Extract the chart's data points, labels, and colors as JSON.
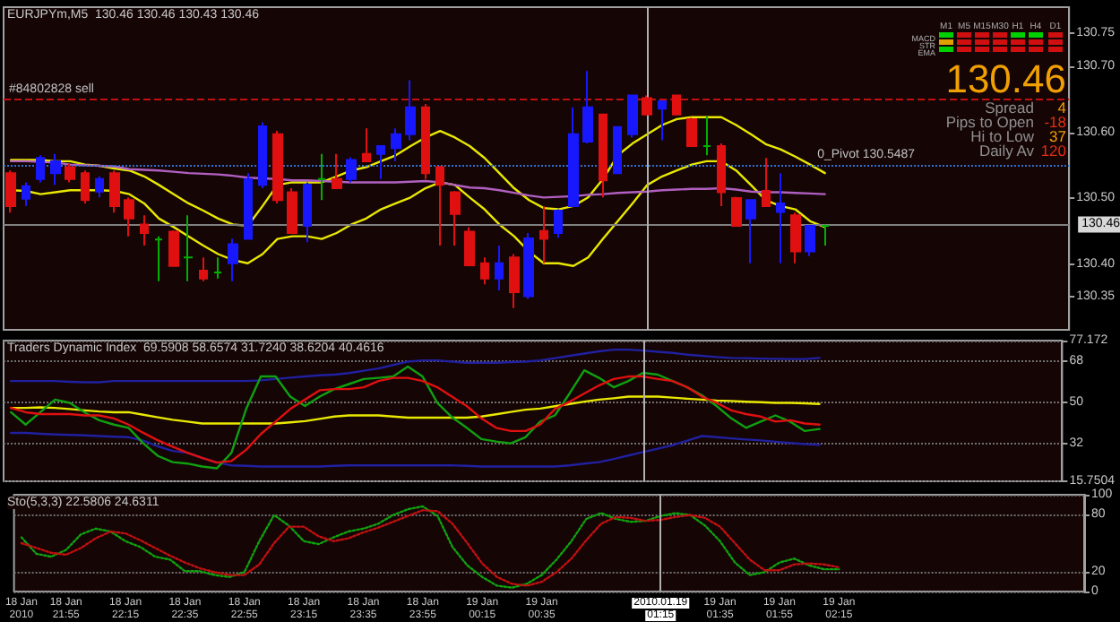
{
  "chart_data": [
    {
      "type": "candlestick",
      "title": "EURJPYm,M5  130.46 130.46 130.43 130.46",
      "categories": [
        null,
        null,
        null,
        null,
        null,
        null,
        null,
        null,
        null,
        null,
        null,
        null,
        null,
        null,
        null,
        null,
        null,
        null,
        null,
        null,
        null,
        null,
        null,
        null,
        null,
        null,
        null,
        null,
        null,
        null,
        null,
        null,
        null,
        null,
        null,
        null,
        null,
        null,
        null,
        null,
        null,
        null,
        null,
        null,
        null,
        null,
        null,
        null,
        null,
        null,
        null,
        null,
        null,
        null,
        null,
        null
      ],
      "ohlc": [
        [
          130.538,
          130.542,
          130.478,
          130.488
        ],
        [
          130.499,
          130.524,
          130.488,
          130.518
        ],
        [
          130.529,
          130.565,
          130.524,
          130.561
        ],
        [
          130.538,
          130.567,
          130.52,
          130.556
        ],
        [
          130.547,
          130.552,
          130.524,
          130.529
        ],
        [
          130.538,
          130.542,
          130.492,
          130.497
        ],
        [
          130.51,
          130.533,
          130.501,
          130.529
        ],
        [
          130.538,
          130.542,
          130.478,
          130.488
        ],
        [
          130.497,
          130.501,
          130.442,
          130.469
        ],
        [
          130.46,
          130.474,
          130.428,
          130.447
        ],
        [
          130.437,
          130.442,
          130.374,
          130.437
        ],
        [
          130.449,
          130.451,
          130.397,
          130.397
        ],
        [
          130.41,
          130.474,
          130.374,
          130.41
        ],
        [
          130.39,
          130.41,
          130.374,
          130.378
        ],
        [
          130.387,
          130.41,
          130.378,
          130.387
        ],
        [
          130.401,
          130.438,
          130.374,
          130.43
        ],
        [
          130.438,
          130.538,
          130.438,
          130.529
        ],
        [
          130.52,
          130.615,
          130.515,
          130.609
        ],
        [
          130.597,
          130.602,
          130.492,
          130.497
        ],
        [
          130.509,
          130.515,
          130.447,
          130.447
        ],
        [
          130.458,
          130.524,
          130.433,
          130.52
        ],
        [
          130.529,
          130.567,
          130.497,
          130.529
        ],
        [
          130.529,
          130.567,
          130.515,
          130.515
        ],
        [
          130.529,
          130.562,
          130.524,
          130.558
        ],
        [
          130.567,
          130.606,
          130.556,
          130.556
        ],
        [
          130.567,
          130.579,
          130.529,
          130.579
        ],
        [
          130.576,
          130.606,
          130.556,
          130.597
        ],
        [
          130.597,
          130.679,
          130.588,
          130.638
        ],
        [
          130.638,
          130.643,
          130.529,
          130.538
        ],
        [
          130.547,
          130.549,
          130.428,
          130.52
        ],
        [
          130.509,
          130.511,
          130.428,
          130.476
        ],
        [
          130.449,
          130.456,
          130.397,
          130.398
        ],
        [
          130.401,
          130.41,
          130.369,
          130.378
        ],
        [
          130.378,
          130.428,
          130.36,
          130.401
        ],
        [
          130.41,
          130.415,
          130.333,
          130.357
        ],
        [
          130.351,
          130.447,
          130.347,
          130.439
        ],
        [
          130.45,
          130.488,
          130.401,
          130.438
        ],
        [
          130.447,
          130.483,
          130.44,
          130.481
        ],
        [
          130.488,
          130.638,
          130.488,
          130.597
        ],
        [
          130.586,
          130.693,
          130.583,
          130.638
        ],
        [
          130.627,
          130.627,
          130.501,
          130.527
        ],
        [
          130.538,
          130.608,
          130.538,
          130.608
        ],
        [
          130.597,
          130.656,
          130.592,
          130.656
        ],
        [
          130.652,
          130.656,
          130.627,
          130.627
        ],
        [
          130.636,
          130.647,
          130.588,
          130.647
        ],
        [
          130.656,
          130.656,
          130.627,
          130.627
        ],
        [
          130.62,
          130.622,
          130.579,
          130.579
        ],
        [
          130.579,
          130.624,
          130.565,
          130.579
        ],
        [
          130.579,
          130.583,
          130.488,
          130.509
        ],
        [
          130.5,
          130.502,
          130.458,
          130.458
        ],
        [
          130.469,
          130.497,
          130.401,
          130.497
        ],
        [
          130.511,
          130.561,
          130.488,
          130.488
        ],
        [
          130.479,
          130.538,
          130.401,
          130.492
        ],
        [
          130.474,
          130.478,
          130.401,
          130.419
        ],
        [
          130.419,
          130.458,
          130.412,
          130.458
        ],
        [
          130.458,
          130.46,
          130.428,
          130.458
        ]
      ],
      "colors": [
        "#e01010",
        "#1818ff",
        "#1818ff",
        "#1818ff",
        "#e01010",
        "#e01010",
        "#1818ff",
        "#e01010",
        "#e01010",
        "#e01010",
        "#00b000",
        "#e01010",
        "#00b000",
        "#e01010",
        "#00b000",
        "#1818ff",
        "#1818ff",
        "#1818ff",
        "#e01010",
        "#e01010",
        "#1818ff",
        "#00b000",
        "#e01010",
        "#1818ff",
        "#e01010",
        "#1818ff",
        "#1818ff",
        "#1818ff",
        "#e01010",
        "#e01010",
        "#e01010",
        "#e01010",
        "#e01010",
        "#1818ff",
        "#e01010",
        "#1818ff",
        "#e01010",
        "#1818ff",
        "#1818ff",
        "#1818ff",
        "#e01010",
        "#1818ff",
        "#1818ff",
        "#e01010",
        "#1818ff",
        "#e01010",
        "#e01010",
        "#00b000",
        "#e01010",
        "#e01010",
        "#1818ff",
        "#e01010",
        "#1818ff",
        "#e01010",
        "#1818ff",
        "#00b000"
      ],
      "series": [
        {
          "type": "line",
          "color": "#e8e800",
          "values": [
            130.558,
            130.558,
            130.558,
            130.556,
            130.556,
            130.551,
            130.549,
            130.545,
            130.542,
            130.533,
            130.52,
            130.506,
            130.492,
            130.481,
            130.469,
            130.46,
            130.458,
            130.488,
            130.52,
            130.524,
            130.524,
            130.524,
            130.533,
            130.542,
            130.547,
            130.556,
            130.565,
            130.579,
            130.592,
            130.602,
            130.592,
            130.579,
            130.561,
            130.538,
            130.515,
            130.497,
            130.485,
            130.483,
            130.488,
            130.501,
            130.529,
            130.565,
            130.583,
            130.597,
            130.611,
            130.62,
            130.623,
            130.623,
            130.623,
            130.611,
            130.597,
            130.582,
            130.574,
            130.563,
            130.551,
            130.538
          ]
        },
        {
          "type": "line",
          "color": "#e8e800",
          "values": [
            130.512,
            130.511,
            130.506,
            130.509,
            130.512,
            130.512,
            130.512,
            130.511,
            130.506,
            130.492,
            130.469,
            130.456,
            130.442,
            130.428,
            130.415,
            130.406,
            130.401,
            130.415,
            130.438,
            130.442,
            130.442,
            130.438,
            130.447,
            130.46,
            130.469,
            130.483,
            130.492,
            130.501,
            130.515,
            130.524,
            130.52,
            130.501,
            130.483,
            130.46,
            130.442,
            130.419,
            130.401,
            130.401,
            130.397,
            130.41,
            130.438,
            130.465,
            130.492,
            130.52,
            130.533,
            130.542,
            130.551,
            130.556,
            130.556,
            130.542,
            130.52,
            130.497,
            130.488,
            130.483,
            130.465,
            130.456
          ]
        },
        {
          "type": "line",
          "color": "#b060c0",
          "values": [
            130.556,
            130.556,
            130.555,
            130.554,
            130.551,
            130.55,
            130.549,
            130.548,
            130.544,
            130.543,
            130.542,
            130.54,
            130.538,
            130.537,
            130.536,
            130.534,
            130.531,
            130.53,
            130.529,
            130.527,
            130.527,
            130.526,
            130.525,
            130.524,
            130.524,
            130.524,
            130.524,
            130.525,
            130.526,
            130.524,
            130.52,
            130.516,
            130.515,
            130.512,
            130.508,
            130.504,
            130.501,
            130.502,
            130.503,
            130.505,
            130.506,
            130.508,
            130.509,
            130.51,
            130.512,
            130.513,
            130.514,
            130.514,
            130.515,
            130.513,
            130.51,
            130.509,
            130.509,
            130.508,
            130.507,
            130.506
          ]
        }
      ],
      "marker": "none",
      "ylim": [
        130.3,
        130.79
      ],
      "yticks": [
        {
          "value": 130.35,
          "label": "130.35"
        },
        {
          "value": 130.4,
          "label": "130.40"
        },
        {
          "value": 130.5,
          "label": "130.50"
        },
        {
          "value": 130.6,
          "label": "130.60"
        },
        {
          "value": 130.7,
          "label": "130.70"
        },
        {
          "value": 130.75,
          "label": "130.75"
        }
      ],
      "tick_labels": "y",
      "ref_lines": [
        {
          "axis": "y",
          "value": 130.653,
          "label": "#84802828 sell",
          "color": "#c01010",
          "line_style": "dashed"
        },
        {
          "axis": "y",
          "value": 130.5487,
          "label": "0_Pivot 130.5487",
          "color": "#3070d0",
          "line_style": "dotted"
        },
        {
          "axis": "y",
          "value": 130.46,
          "label": "130.46",
          "color": "#808080",
          "line_style": "solid"
        }
      ],
      "annotations": [
        "130.46",
        "Spread",
        "4",
        "Pips to Open",
        "-18",
        "Hi to Low",
        "37",
        "Daily Av",
        "120",
        "M1",
        "M5",
        "M15",
        "M30",
        "H1",
        "H4",
        "D1",
        "MACD",
        "STR",
        "EMA"
      ]
    },
    {
      "type": "line",
      "title": "Traders Dynamic Index  69.5908 58.6574 31.7240 38.6204 40.4616",
      "categories": [
        null,
        null,
        null,
        null,
        null,
        null,
        null,
        null,
        null,
        null,
        null,
        null,
        null,
        null,
        null,
        null,
        null,
        null,
        null,
        null,
        null,
        null,
        null,
        null,
        null,
        null,
        null,
        null,
        null,
        null,
        null,
        null,
        null,
        null,
        null,
        null,
        null,
        null,
        null,
        null,
        null,
        null,
        null,
        null,
        null,
        null,
        null,
        null,
        null,
        null,
        null,
        null,
        null,
        null,
        null,
        null
      ],
      "series": [
        {
          "color": "#2020a0",
          "values": [
            59.5,
            59.5,
            59.5,
            59.5,
            59.2,
            59,
            59,
            59.5,
            59.5,
            59.5,
            59.5,
            59.5,
            59.5,
            59.5,
            59.5,
            59.5,
            59.5,
            59.8,
            60.4,
            61,
            61.5,
            62,
            62.3,
            63,
            64,
            65,
            66.5,
            68,
            68.5,
            68.5,
            68,
            67.5,
            67.5,
            67.5,
            67.8,
            68,
            68.5,
            69.5,
            70.5,
            71.5,
            72.5,
            73.2,
            73.2,
            72.8,
            72.3,
            71.8,
            71,
            70.5,
            70,
            69.6,
            69.5,
            69.3,
            69.2,
            69.1,
            69.1,
            69.6
          ]
        },
        {
          "color": "#2020a0",
          "values": [
            36.9,
            36.9,
            36.5,
            36.2,
            36,
            35.8,
            35.5,
            35.2,
            35,
            33.5,
            31,
            29,
            28.2,
            26,
            24,
            22.7,
            22.5,
            22.2,
            22.2,
            22.2,
            22.2,
            22.2,
            22.5,
            22.7,
            22.7,
            22.7,
            22.7,
            22.7,
            22.7,
            22.7,
            22.7,
            22.5,
            22.2,
            22.2,
            22.2,
            22.2,
            22.2,
            22.2,
            22.7,
            23.5,
            24.1,
            25.5,
            27,
            28.5,
            30,
            31.5,
            33.5,
            35.5,
            35,
            34.5,
            34,
            33.6,
            33,
            32.5,
            32,
            31.7
          ]
        },
        {
          "color": "#e8e800",
          "values": [
            47.8,
            47.8,
            48,
            47.8,
            47.3,
            46.7,
            46.2,
            45.9,
            45.9,
            44.8,
            43.7,
            42.6,
            41.8,
            41,
            41,
            41,
            41,
            41,
            41,
            41.5,
            42,
            43,
            44,
            44.5,
            44.5,
            44.5,
            44,
            43.5,
            43.5,
            43.5,
            43.5,
            43.5,
            44,
            45,
            46,
            47,
            47.5,
            48.5,
            49.5,
            50.5,
            51.4,
            52,
            52.7,
            52.7,
            52.7,
            52.3,
            51.8,
            51.4,
            51,
            50.8,
            50.5,
            50.3,
            50,
            50,
            49.8,
            49.5
          ]
        },
        {
          "color": "#10a010",
          "values": [
            45.9,
            40.5,
            45.9,
            51.4,
            50,
            45.9,
            42.4,
            40.5,
            39.1,
            32.3,
            26.8,
            24.1,
            23.5,
            22.2,
            21.4,
            28.2,
            47.3,
            61.5,
            61.5,
            52.7,
            48.6,
            52.7,
            56,
            58.2,
            60.4,
            60.9,
            61.5,
            65.8,
            61.5,
            50,
            43.7,
            39.1,
            34.2,
            33.1,
            32.3,
            35,
            41.8,
            44.5,
            54.1,
            64.2,
            60.9,
            56.8,
            59.5,
            63.1,
            62.3,
            59.5,
            56.8,
            53.3,
            48.6,
            43.2,
            39.1,
            41.8,
            44.5,
            41.8,
            37.7,
            38.6
          ]
        },
        {
          "color": "#e01010",
          "values": [
            47.8,
            45.9,
            45.1,
            45.1,
            45.1,
            44.5,
            44.5,
            43.2,
            40.5,
            36.9,
            33.6,
            30.9,
            28.2,
            26,
            23.9,
            24.6,
            29.5,
            36.4,
            41.8,
            47.3,
            51.4,
            55.5,
            56,
            56,
            56.8,
            59.5,
            60.9,
            60.9,
            59.5,
            56.8,
            52.7,
            48.6,
            43.2,
            39.1,
            37.7,
            37.7,
            40.5,
            47.3,
            50.5,
            54.1,
            57.6,
            60.4,
            61.5,
            61.5,
            60.4,
            59.5,
            56.8,
            52.7,
            50,
            46.7,
            45.1,
            44,
            41.8,
            42.4,
            41,
            40.5
          ]
        }
      ],
      "marker": "none",
      "ylim": [
        15.7504,
        77.172
      ],
      "yticks": [
        15.7504,
        32,
        50,
        68,
        77.172
      ],
      "grid": "y",
      "tick_labels": "y"
    },
    {
      "type": "line",
      "title": "Sto(5,3,3) 22.5806 24.6311",
      "categories": [
        "18 Jan 2010",
        null,
        null,
        "18 Jan 21:55",
        null,
        null,
        null,
        "18 Jan 22:15",
        null,
        null,
        null,
        "18 Jan 22:35",
        null,
        null,
        null,
        "18 Jan 22:55",
        null,
        null,
        null,
        "18 Jan 23:15",
        null,
        null,
        null,
        "18 Jan 23:35",
        null,
        null,
        null,
        "18 Jan 23:55",
        null,
        null,
        null,
        "19 Jan 00:15",
        null,
        null,
        null,
        "19 Jan 00:35",
        null,
        null,
        null,
        null,
        null,
        null,
        null,
        "2010.01.19 01:15",
        null,
        null,
        null,
        "19 Jan 01:35",
        null,
        null,
        null,
        "19 Jan 01:55",
        null,
        null,
        null,
        "19 Jan 02:15"
      ],
      "series": [
        {
          "color": "#10a010",
          "line_style": "dotted",
          "values": [
            56,
            39,
            36,
            43,
            59,
            65,
            62,
            52,
            46,
            36,
            33,
            21,
            21,
            17,
            15,
            20,
            52,
            79,
            68,
            52,
            49,
            56,
            62,
            65,
            70,
            79,
            85,
            88,
            78,
            46,
            27,
            15,
            6,
            4,
            8,
            17,
            33,
            52,
            75,
            81,
            75,
            72,
            73,
            78,
            81,
            79,
            68,
            52,
            30,
            17,
            20,
            30,
            34,
            27,
            23,
            23
          ]
        },
        {
          "color": "#c01010",
          "line_style": "dotted",
          "values": [
            50,
            45,
            40,
            38,
            45,
            55,
            62,
            60,
            53,
            45,
            37,
            30,
            24,
            20,
            17,
            17,
            28,
            50,
            67,
            67,
            57,
            52,
            55,
            61,
            66,
            72,
            78,
            84,
            83,
            70,
            50,
            29,
            15,
            8,
            6,
            10,
            20,
            34,
            53,
            70,
            77,
            76,
            73,
            74,
            77,
            79,
            76,
            67,
            50,
            33,
            22,
            22,
            28,
            29,
            28,
            25
          ]
        }
      ],
      "marker": "none",
      "ylim": [
        0,
        100
      ],
      "yticks": [
        0,
        20,
        80,
        100
      ],
      "grid": "y",
      "ref_lines": [
        {
          "axis": "x",
          "value": "2010.01.19 01:15",
          "color": "#b0b0b0",
          "line_style": "solid"
        }
      ]
    }
  ]
}
